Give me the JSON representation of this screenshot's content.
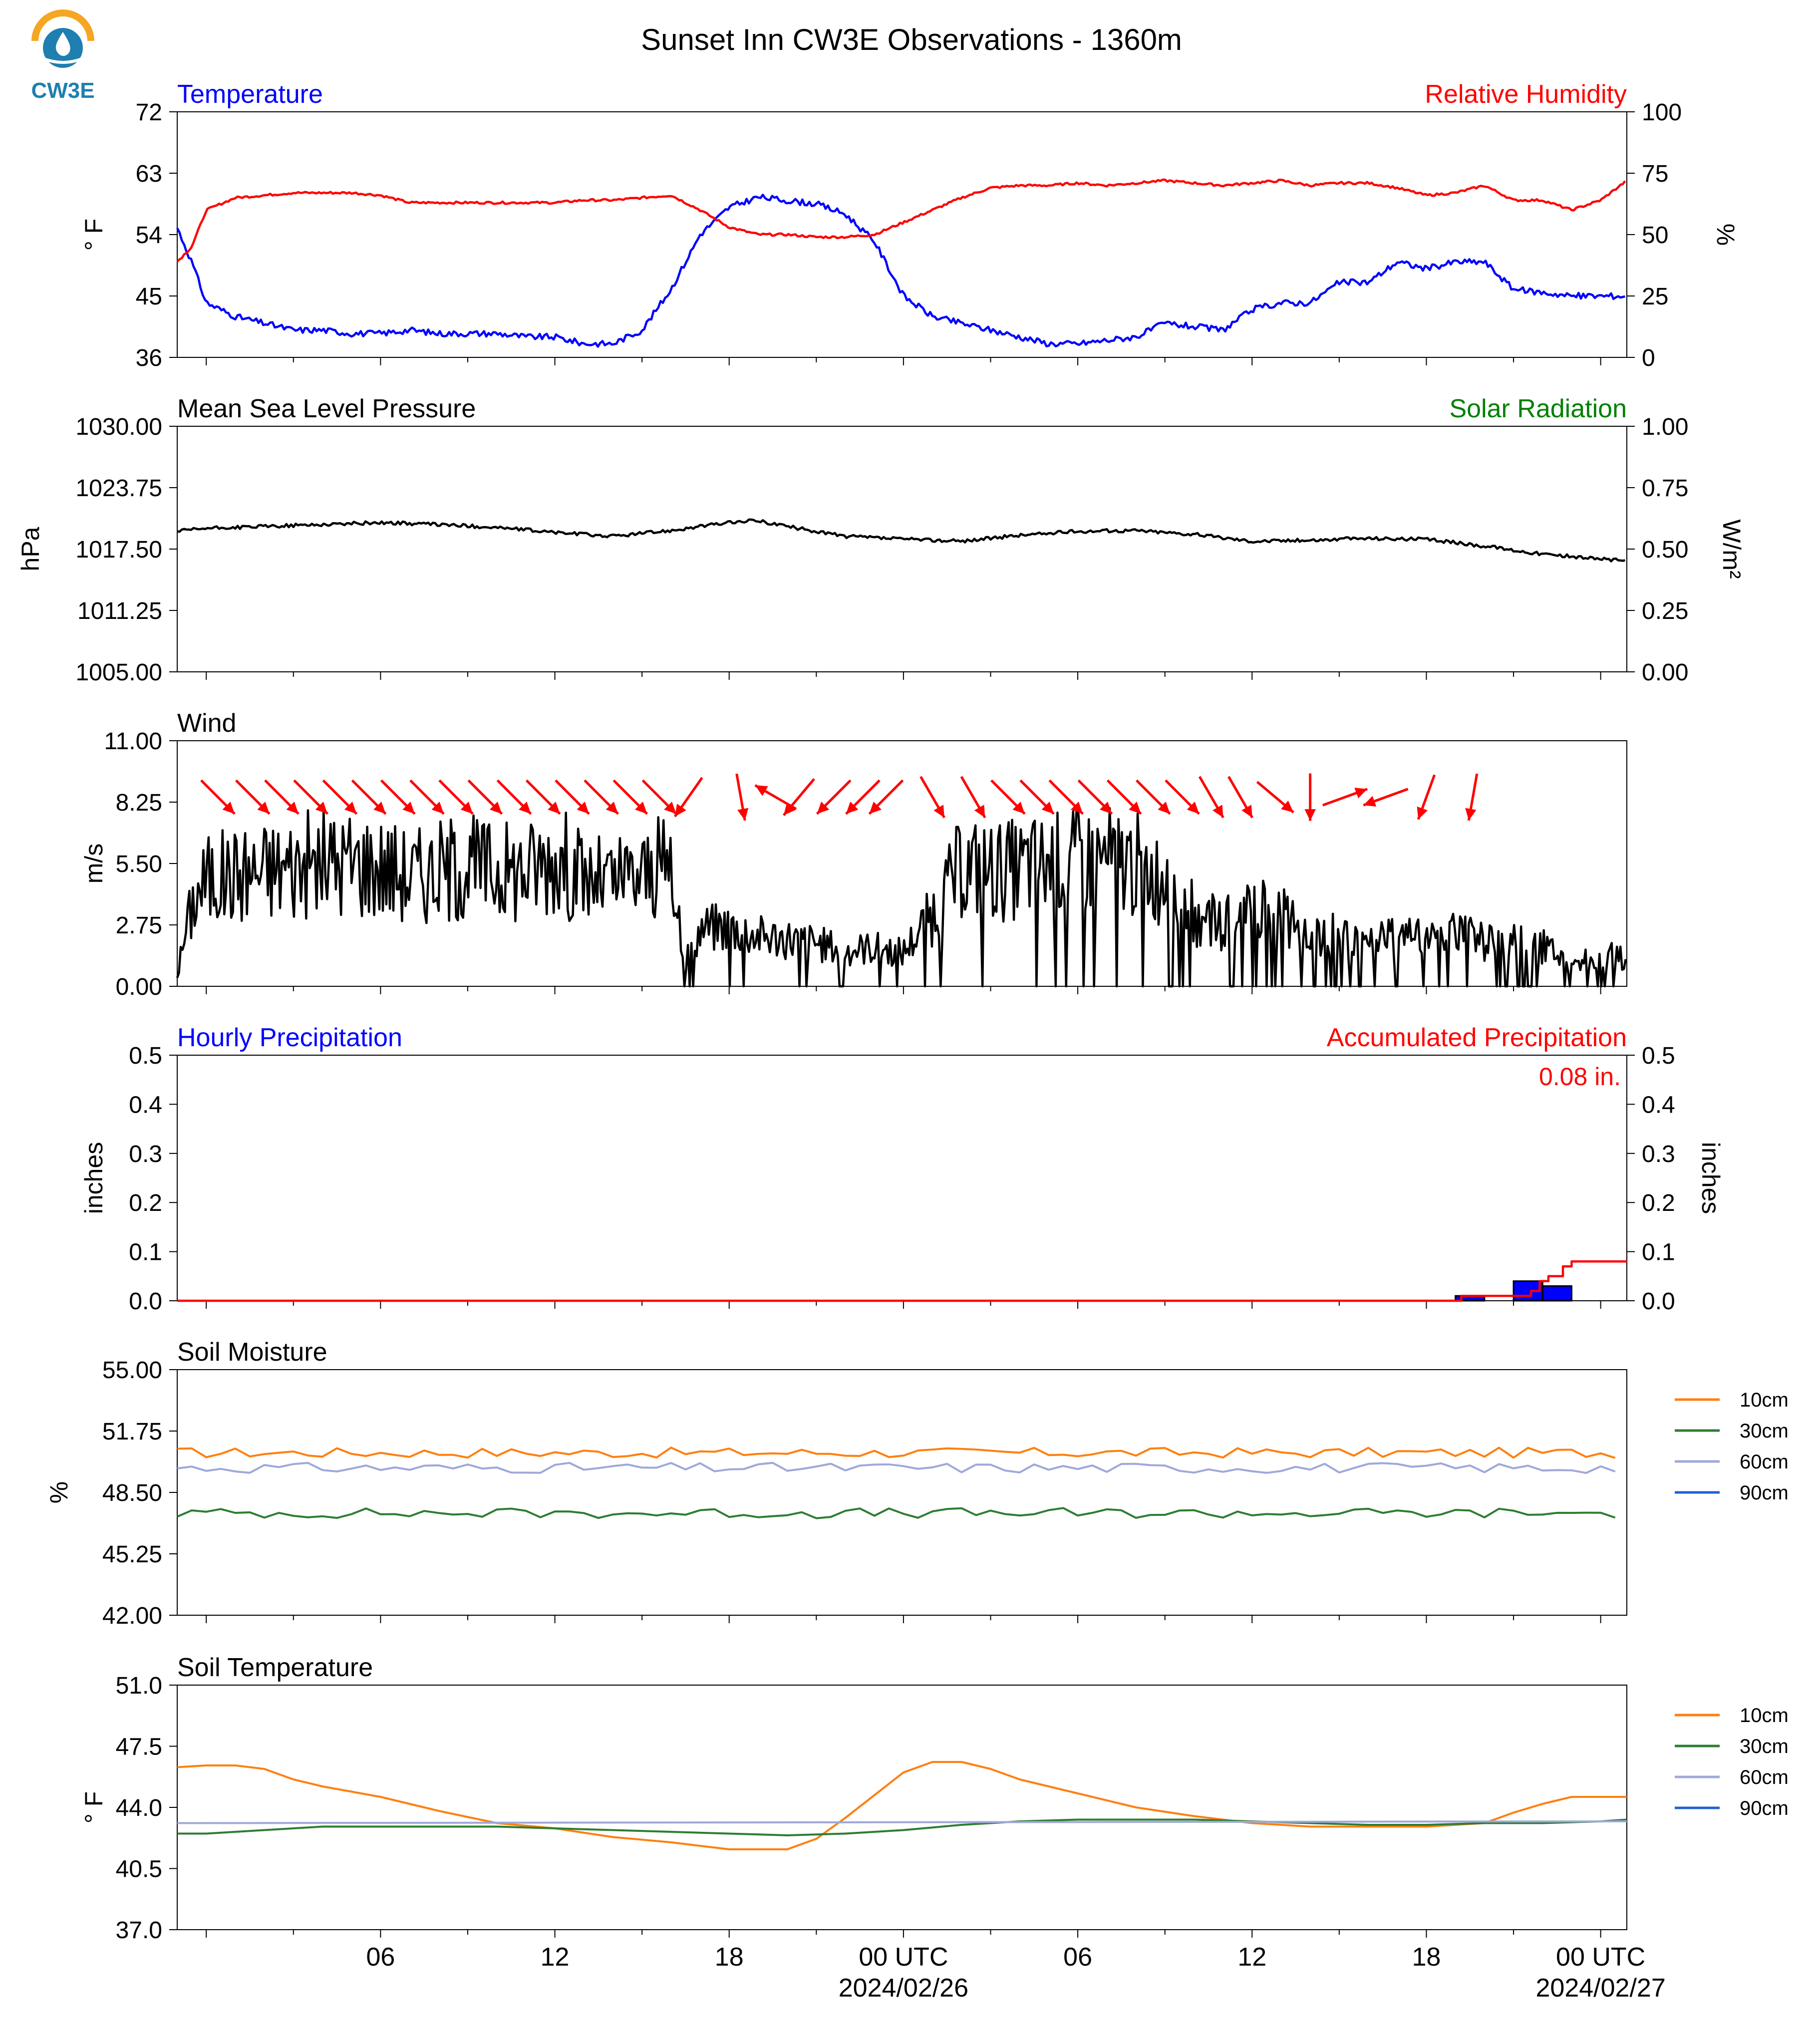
{
  "title": "Sunset Inn CW3E Observations - 1360m",
  "logo": {
    "text": "CW3E",
    "primary_color": "#1e7fb0",
    "accent_color": "#f5a623"
  },
  "colors": {
    "temperature": "#0000ff",
    "humidity": "#ff0000",
    "pressure": "#000000",
    "solar": "#008000",
    "wind": "#000000",
    "wind_arrow": "#ff0000",
    "hourly_precip": "#0000ff",
    "accum_precip": "#ff0000",
    "c10": "#ff7f0e",
    "c30": "#2e7d32",
    "c60": "#9fa8da",
    "c90": "#1f5fd8"
  },
  "x_axis": {
    "hours_span": 48,
    "tick_labels": [
      {
        "hour": 6,
        "label": "06",
        "date": ""
      },
      {
        "hour": 12,
        "label": "12",
        "date": ""
      },
      {
        "hour": 18,
        "label": "18",
        "date": ""
      },
      {
        "hour": 24,
        "label": "00 UTC",
        "date": "2024/02/26"
      },
      {
        "hour": 30,
        "label": "06",
        "date": ""
      },
      {
        "hour": 36,
        "label": "12",
        "date": ""
      },
      {
        "hour": 42,
        "label": "18",
        "date": ""
      },
      {
        "hour": 48,
        "label": "00 UTC",
        "date": "2024/02/27"
      }
    ]
  },
  "chart_data": [
    {
      "type": "line",
      "panel": "temperature_humidity",
      "title_left": "Temperature",
      "title_right": "Relative Humidity",
      "ylabel_left": "° F",
      "ylabel_right": "%",
      "ylim_left": [
        36,
        72
      ],
      "ylim_right": [
        0,
        100
      ],
      "yticks_left": [
        "36",
        "45",
        "54",
        "63",
        "72"
      ],
      "yticks_right": [
        "0",
        "25",
        "50",
        "75",
        "100"
      ],
      "series": [
        {
          "name": "Temperature",
          "axis": "left",
          "x": [
            -1,
            -0.5,
            0,
            1,
            2,
            3,
            4,
            5,
            6,
            7,
            8,
            9,
            10,
            11,
            12,
            13,
            14,
            15,
            16,
            17,
            18,
            19,
            20,
            21,
            22,
            23,
            24,
            25,
            26,
            27,
            28,
            29,
            30,
            31,
            32,
            33,
            34,
            35,
            36,
            37,
            38,
            39,
            40,
            41,
            42,
            43,
            44,
            45,
            46,
            47,
            48,
            48.9
          ],
          "values": [
            55,
            50,
            44,
            42,
            41,
            40,
            40,
            39.5,
            39.5,
            40,
            39.5,
            39.5,
            39.5,
            39,
            39,
            38,
            38,
            40,
            46,
            54,
            58,
            59.5,
            59,
            58.5,
            57,
            53,
            45,
            42,
            41,
            40,
            39,
            38,
            38,
            38.5,
            39,
            41,
            40.5,
            40,
            43,
            44,
            44,
            47,
            47,
            50,
            49,
            50,
            50,
            46,
            45.5,
            45,
            45,
            45
          ]
        },
        {
          "name": "Relative Humidity",
          "axis": "right",
          "x": [
            -1,
            -0.5,
            0,
            1,
            2,
            3,
            4,
            5,
            6,
            7,
            8,
            9,
            10,
            11,
            12,
            13,
            14,
            15,
            16,
            17,
            18,
            19,
            20,
            21,
            22,
            23,
            24,
            25,
            26,
            27,
            28,
            29,
            30,
            31,
            32,
            33,
            34,
            35,
            36,
            37,
            38,
            39,
            40,
            41,
            42,
            43,
            44,
            45,
            46,
            47,
            48,
            48.9
          ],
          "values": [
            39,
            45,
            60,
            65,
            66,
            67,
            67,
            67,
            66,
            63,
            63,
            63,
            63,
            63,
            63,
            64,
            64,
            65,
            66,
            60,
            53,
            50,
            50,
            49,
            49,
            50,
            55,
            60,
            65,
            69,
            70,
            70,
            71,
            70,
            71,
            72,
            71,
            70,
            71,
            72,
            70,
            71,
            71,
            69,
            66,
            67,
            70,
            64,
            64,
            60,
            64,
            72
          ]
        }
      ]
    },
    {
      "type": "line",
      "panel": "pressure_solar",
      "title_left": "Mean Sea Level Pressure",
      "title_right": "Solar Radiation",
      "ylabel_left": "hPa",
      "ylabel_right": "W/m²",
      "ylim_left": [
        1005,
        1030
      ],
      "ylim_right": [
        0,
        1
      ],
      "yticks_left": [
        "1005.00",
        "1011.25",
        "1017.50",
        "1023.75",
        "1030.00"
      ],
      "yticks_right": [
        "0.00",
        "0.25",
        "0.50",
        "0.75",
        "1.00"
      ],
      "series": [
        {
          "name": "Mean Sea Level Pressure",
          "axis": "left",
          "x": [
            -1,
            0,
            2,
            4,
            6,
            8,
            10,
            12,
            14,
            16,
            18,
            19,
            20,
            22,
            24,
            26,
            28,
            30,
            32,
            34,
            36,
            38,
            40,
            42,
            44,
            46,
            48,
            48.9
          ],
          "values": [
            1019.3,
            1019.6,
            1019.8,
            1020,
            1020.2,
            1020,
            1019.7,
            1019.2,
            1018.8,
            1019.4,
            1020.2,
            1020.4,
            1019.8,
            1018.8,
            1018.5,
            1018.3,
            1018.9,
            1019.3,
            1019.4,
            1019,
            1018.3,
            1018.4,
            1018.6,
            1018.5,
            1017.8,
            1017,
            1016.5,
            1016.3
          ]
        }
      ]
    },
    {
      "type": "line",
      "panel": "wind",
      "title_left": "Wind",
      "ylabel_left": "m/s",
      "ylim_left": [
        0,
        11
      ],
      "yticks_left": [
        "0.00",
        "2.75",
        "5.50",
        "8.25",
        "11.00"
      ],
      "series": [
        {
          "name": "Wind",
          "axis": "left",
          "x": [
            -1,
            -0.7,
            -0.4,
            0,
            1,
            2,
            3,
            4,
            5,
            6,
            7,
            8,
            9,
            10,
            11,
            12,
            13,
            14,
            15,
            16,
            16.5,
            17,
            18,
            19,
            20,
            21,
            22,
            23,
            24,
            25,
            26,
            27,
            28,
            29,
            30,
            31,
            32,
            33,
            34,
            35,
            36,
            37,
            38,
            39,
            40,
            41,
            42,
            43,
            44,
            45,
            46,
            47,
            48,
            48.9
          ],
          "values": [
            0.5,
            2.5,
            4,
            4.8,
            5,
            5.2,
            5.4,
            5.5,
            5.6,
            5.4,
            5,
            5.2,
            5.4,
            5.2,
            5.2,
            5.8,
            4.8,
            4.6,
            5,
            5.4,
            1.2,
            2.5,
            2.6,
            2.2,
            2.1,
            1.9,
            1.6,
            1.7,
            1.5,
            3.2,
            5.3,
            5.1,
            5.2,
            5.4,
            5.5,
            5.6,
            5.4,
            4.6,
            3.2,
            2.8,
            3.4,
            3.1,
            2.6,
            2.2,
            1.8,
            2.4,
            2.1,
            2.3,
            2.0,
            2.2,
            1.8,
            0.8,
            1.5,
            1.2
          ]
        }
      ],
      "arrows": {
        "x": [
          0.4,
          1.6,
          2.6,
          3.6,
          4.6,
          5.6,
          6.6,
          7.6,
          8.6,
          9.6,
          10.6,
          11.6,
          12.6,
          13.6,
          14.6,
          15.6,
          16.6,
          18.4,
          19.6,
          20.4,
          21.6,
          22.6,
          23.4,
          25,
          26.4,
          27.6,
          28.6,
          29.6,
          30.6,
          31.6,
          32.6,
          33.6,
          34.6,
          35.6,
          36.8,
          38,
          39.2,
          40.6,
          42,
          43.6
        ],
        "direction_deg": [
          315,
          315,
          315,
          315,
          315,
          315,
          315,
          315,
          315,
          315,
          315,
          315,
          315,
          315,
          315,
          315,
          235,
          280,
          150,
          230,
          225,
          225,
          225,
          300,
          300,
          315,
          315,
          315,
          315,
          315,
          315,
          315,
          300,
          300,
          320,
          270,
          20,
          200,
          250,
          260
        ]
      }
    },
    {
      "type": "bar",
      "panel": "precipitation",
      "title_left": "Hourly Precipitation",
      "title_right": "Accumulated Precipitation",
      "annotation": "0.08 in.",
      "ylabel_left": "inches",
      "ylabel_right": "inches",
      "ylim_left": [
        0,
        0.5
      ],
      "ylim_right": [
        0,
        0.5
      ],
      "yticks_left": [
        "0.0",
        "0.1",
        "0.2",
        "0.3",
        "0.4",
        "0.5"
      ],
      "yticks_right": [
        "0.0",
        "0.1",
        "0.2",
        "0.3",
        "0.4",
        "0.5"
      ],
      "bars": {
        "x": [
          43,
          45,
          46
        ],
        "values": [
          0.01,
          0.04,
          0.03
        ]
      },
      "series": [
        {
          "name": "Accumulated Precipitation",
          "axis": "right",
          "x": [
            -1,
            42.5,
            43.2,
            45,
            45.6,
            45.9,
            46.2,
            46.7,
            47,
            48.9
          ],
          "values": [
            0,
            0,
            0.01,
            0.01,
            0.02,
            0.04,
            0.05,
            0.07,
            0.08,
            0.08
          ]
        }
      ]
    },
    {
      "type": "line",
      "panel": "soil_moisture",
      "title_left": "Soil Moisture",
      "ylabel_left": "%",
      "ylim_left": [
        42,
        55
      ],
      "yticks_left": [
        "42.00",
        "45.25",
        "48.50",
        "51.75",
        "55.00"
      ],
      "legend": [
        "10cm",
        "30cm",
        "60cm",
        "90cm"
      ],
      "series": [
        {
          "name": "10cm",
          "axis": "left",
          "values": [
            50.6
          ]
        },
        {
          "name": "30cm",
          "axis": "left",
          "values": [
            47.4
          ]
        },
        {
          "name": "60cm",
          "axis": "left",
          "values": [
            49.8
          ]
        },
        {
          "name": "90cm",
          "axis": "left",
          "values": []
        }
      ]
    },
    {
      "type": "line",
      "panel": "soil_temperature",
      "title_left": "Soil Temperature",
      "ylabel_left": "° F",
      "ylim_left": [
        37,
        51
      ],
      "yticks_left": [
        "37.0",
        "40.5",
        "44.0",
        "47.5",
        "51.0"
      ],
      "legend": [
        "10cm",
        "30cm",
        "60cm",
        "90cm"
      ],
      "series": [
        {
          "name": "10cm",
          "axis": "left",
          "x": [
            -1,
            0,
            1,
            2,
            3,
            4,
            6,
            8,
            10,
            12,
            14,
            16,
            18,
            20,
            21,
            22,
            23,
            24,
            25,
            26,
            27,
            28,
            30,
            32,
            34,
            36,
            38,
            40,
            42,
            44,
            45,
            46,
            47,
            48,
            48.9
          ],
          "values": [
            46.3,
            46.4,
            46.4,
            46.2,
            45.6,
            45.2,
            44.6,
            43.8,
            43.1,
            42.8,
            42.3,
            42.0,
            41.6,
            41.6,
            42.2,
            43.4,
            44.7,
            46.0,
            46.6,
            46.6,
            46.2,
            45.6,
            44.8,
            44.0,
            43.5,
            43.1,
            42.9,
            42.9,
            42.9,
            43.1,
            43.7,
            44.2,
            44.6,
            44.6,
            44.6
          ]
        },
        {
          "name": "30cm",
          "axis": "left",
          "x": [
            -1,
            0,
            2,
            4,
            6,
            8,
            10,
            12,
            14,
            16,
            18,
            20,
            22,
            24,
            26,
            28,
            30,
            32,
            34,
            36,
            38,
            40,
            42,
            44,
            46,
            48,
            48.9
          ],
          "values": [
            42.5,
            42.5,
            42.7,
            42.9,
            42.9,
            42.9,
            42.9,
            42.8,
            42.7,
            42.6,
            42.5,
            42.4,
            42.5,
            42.7,
            43.0,
            43.2,
            43.3,
            43.3,
            43.3,
            43.2,
            43.1,
            43.0,
            43.0,
            43.1,
            43.1,
            43.2,
            43.3
          ]
        },
        {
          "name": "60cm",
          "axis": "left",
          "x": [
            -1,
            48.9
          ],
          "values": [
            43.1,
            43.2
          ]
        },
        {
          "name": "90cm",
          "axis": "left",
          "x": [],
          "values": []
        }
      ]
    }
  ]
}
